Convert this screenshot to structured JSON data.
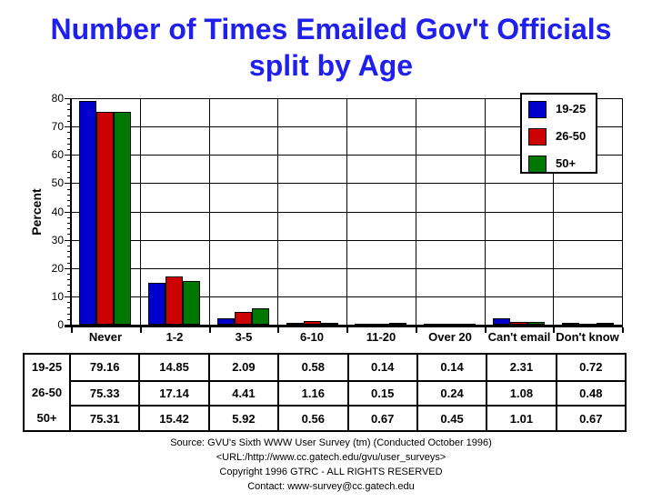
{
  "title": {
    "line1": "Number of Times Emailed Gov't Officials",
    "line2": "split by Age"
  },
  "colors": {
    "title_blue": "#2020ee",
    "series_blue": "#0000cc",
    "series_red": "#cc0000",
    "series_green": "#007700",
    "grid_black": "#000000",
    "background": "#ffffff"
  },
  "chart_data": {
    "type": "bar",
    "title": "Number of Times Emailed Gov't Officials split by Age",
    "xlabel": "",
    "ylabel": "Percent",
    "ylim": [
      0,
      80
    ],
    "yticks": [
      0,
      10,
      20,
      30,
      40,
      50,
      60,
      70,
      80
    ],
    "minor_tick_step": 2,
    "grid": true,
    "legend_position": "top-right",
    "categories": [
      "Never",
      "1-2",
      "3-5",
      "6-10",
      "11-20",
      "Over 20",
      "Can't email",
      "Don't know"
    ],
    "series": [
      {
        "name": "19-25",
        "color": "#0000cc",
        "values": [
          79.16,
          14.85,
          2.09,
          0.58,
          0.14,
          0.14,
          2.31,
          0.72
        ]
      },
      {
        "name": "26-50",
        "color": "#cc0000",
        "values": [
          75.33,
          17.14,
          4.41,
          1.16,
          0.15,
          0.24,
          1.08,
          0.48
        ]
      },
      {
        "name": "50+",
        "color": "#007700",
        "values": [
          75.31,
          15.42,
          5.92,
          0.56,
          0.67,
          0.45,
          1.01,
          0.67
        ]
      }
    ]
  },
  "table": {
    "row_headers": [
      "19-25",
      "26-50",
      "50+"
    ],
    "rows": [
      [
        "79.16",
        "14.85",
        "2.09",
        "0.58",
        "0.14",
        "0.14",
        "2.31",
        "0.72"
      ],
      [
        "75.33",
        "17.14",
        "4.41",
        "1.16",
        "0.15",
        "0.24",
        "1.08",
        "0.48"
      ],
      [
        "75.31",
        "15.42",
        "5.92",
        "0.56",
        "0.67",
        "0.45",
        "1.01",
        "0.67"
      ]
    ]
  },
  "footer": {
    "lines": [
      "Source: GVU's Sixth WWW User Survey (tm) (Conducted October 1996)",
      "<URL:/http://www.cc.gatech.edu/gvu/user_surveys>",
      "Copyright 1996 GTRC - ALL RIGHTS RESERVED",
      "Contact: www-survey@cc.gatech.edu"
    ]
  }
}
